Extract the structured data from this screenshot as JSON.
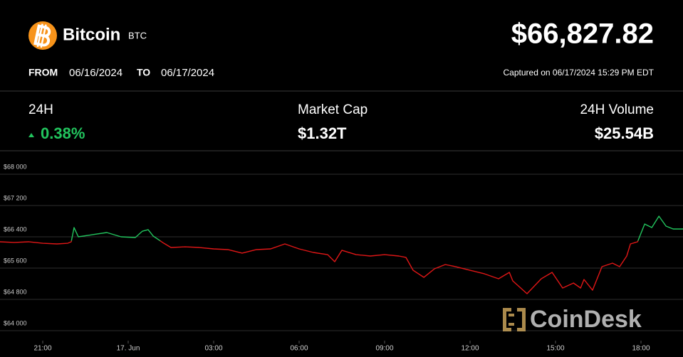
{
  "header": {
    "name": "Bitcoin",
    "symbol": "BTC",
    "price": "$66,827.82",
    "from_label": "FROM",
    "from_date": "06/16/2024",
    "to_label": "TO",
    "to_date": "06/17/2024",
    "captured": "Captured on 06/17/2024 15:29 PM EDT"
  },
  "stats": [
    {
      "label": "24H",
      "value": "0.38%"
    },
    {
      "label": "Market Cap",
      "value": "$1.32T"
    },
    {
      "label": "24H Volume",
      "value": "$25.54B"
    }
  ],
  "watermark": "CoinDesk",
  "chart_data": {
    "type": "line",
    "x": [
      19.5,
      20,
      20.5,
      21,
      21.5,
      21.88,
      22,
      22.1,
      22.25,
      22.75,
      23.25,
      23.75,
      24.25,
      24.5,
      24.7,
      24.88,
      25.25,
      25.5,
      26,
      26.5,
      27,
      27.5,
      28,
      28.5,
      29,
      29.5,
      30,
      30.5,
      31,
      31.25,
      31.5,
      32,
      32.5,
      33,
      33.5,
      33.75,
      34,
      34.38,
      34.75,
      35.13,
      35.5,
      36,
      36.5,
      37,
      37.38,
      37.5,
      38,
      38.5,
      38.88,
      39.25,
      39.63,
      39.88,
      40,
      40.3,
      40.63,
      41,
      41.25,
      41.5,
      41.63,
      41.88,
      42.13,
      42.38,
      42.63,
      42.88,
      43.13,
      43.48
    ],
    "values": [
      66273,
      66255,
      66273,
      66236,
      66218,
      66236,
      66273,
      66636,
      66400,
      66455,
      66509,
      66400,
      66382,
      66545,
      66582,
      66418,
      66236,
      66127,
      66145,
      66127,
      66091,
      66073,
      65982,
      66073,
      66091,
      66218,
      66091,
      66000,
      65945,
      65764,
      66055,
      65945,
      65909,
      65945,
      65909,
      65873,
      65545,
      65364,
      65582,
      65691,
      65636,
      65545,
      65455,
      65327,
      65491,
      65273,
      64945,
      65327,
      65491,
      65091,
      65218,
      65091,
      65309,
      65036,
      65636,
      65727,
      65636,
      65909,
      66218,
      66273,
      66727,
      66636,
      66927,
      66673,
      66600,
      66600
    ],
    "up_color": "#22c55e",
    "down_color": "#e01616",
    "color_threshold": 66300,
    "xlim": [
      19.5,
      43.475
    ],
    "ylim": [
      64000,
      68000
    ],
    "xticks": [
      {
        "value": 21,
        "label": "21:00"
      },
      {
        "value": 24,
        "label": "17. Jun"
      },
      {
        "value": 27,
        "label": "03:00"
      },
      {
        "value": 30,
        "label": "06:00"
      },
      {
        "value": 33,
        "label": "09:00"
      },
      {
        "value": 36,
        "label": "12:00"
      },
      {
        "value": 39,
        "label": "15:00"
      },
      {
        "value": 42,
        "label": "18:00"
      }
    ],
    "yticks": [
      {
        "value": 64000,
        "label": "$64 000"
      },
      {
        "value": 64800,
        "label": "$64 800"
      },
      {
        "value": 65600,
        "label": "$65 600"
      },
      {
        "value": 66400,
        "label": "$66 400"
      },
      {
        "value": 67200,
        "label": "$67 200"
      },
      {
        "value": 68000,
        "label": "$68 000"
      }
    ],
    "grid": true
  }
}
